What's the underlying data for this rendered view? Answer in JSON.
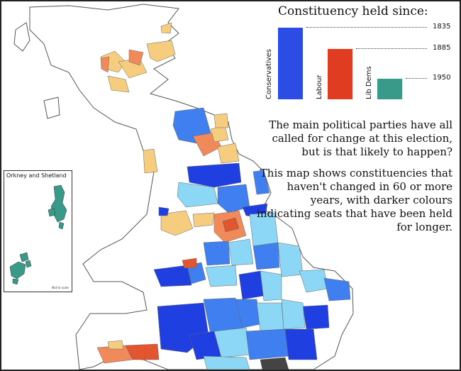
{
  "legend": {
    "title": "Constituency held since:",
    "bars": [
      {
        "party": "Conservatives",
        "year": "1835",
        "color": "#2b4de6"
      },
      {
        "party": "Labour",
        "year": "1885",
        "color": "#e03c22"
      },
      {
        "party": "Lib Dems",
        "year": "1950",
        "color": "#3a9a8a"
      }
    ]
  },
  "text": {
    "para1": "The main political parties have all called for change at this election, but is that likely to happen?",
    "para2": "This map shows constituencies that haven't changed in 60 or more years, with darker colours indicating seats that have been held for longer."
  },
  "inset": {
    "title": "Orkney and Shetland",
    "note": "Not to scale"
  },
  "colors": {
    "con_dark": "#1f3fe0",
    "con_mid": "#3f7ff0",
    "con_light": "#8cd7f5",
    "lab_dark": "#e2552e",
    "lab_mid": "#f08a5a",
    "lab_light": "#f6cc7e",
    "ld": "#3a9a8a",
    "other": "#444444"
  }
}
